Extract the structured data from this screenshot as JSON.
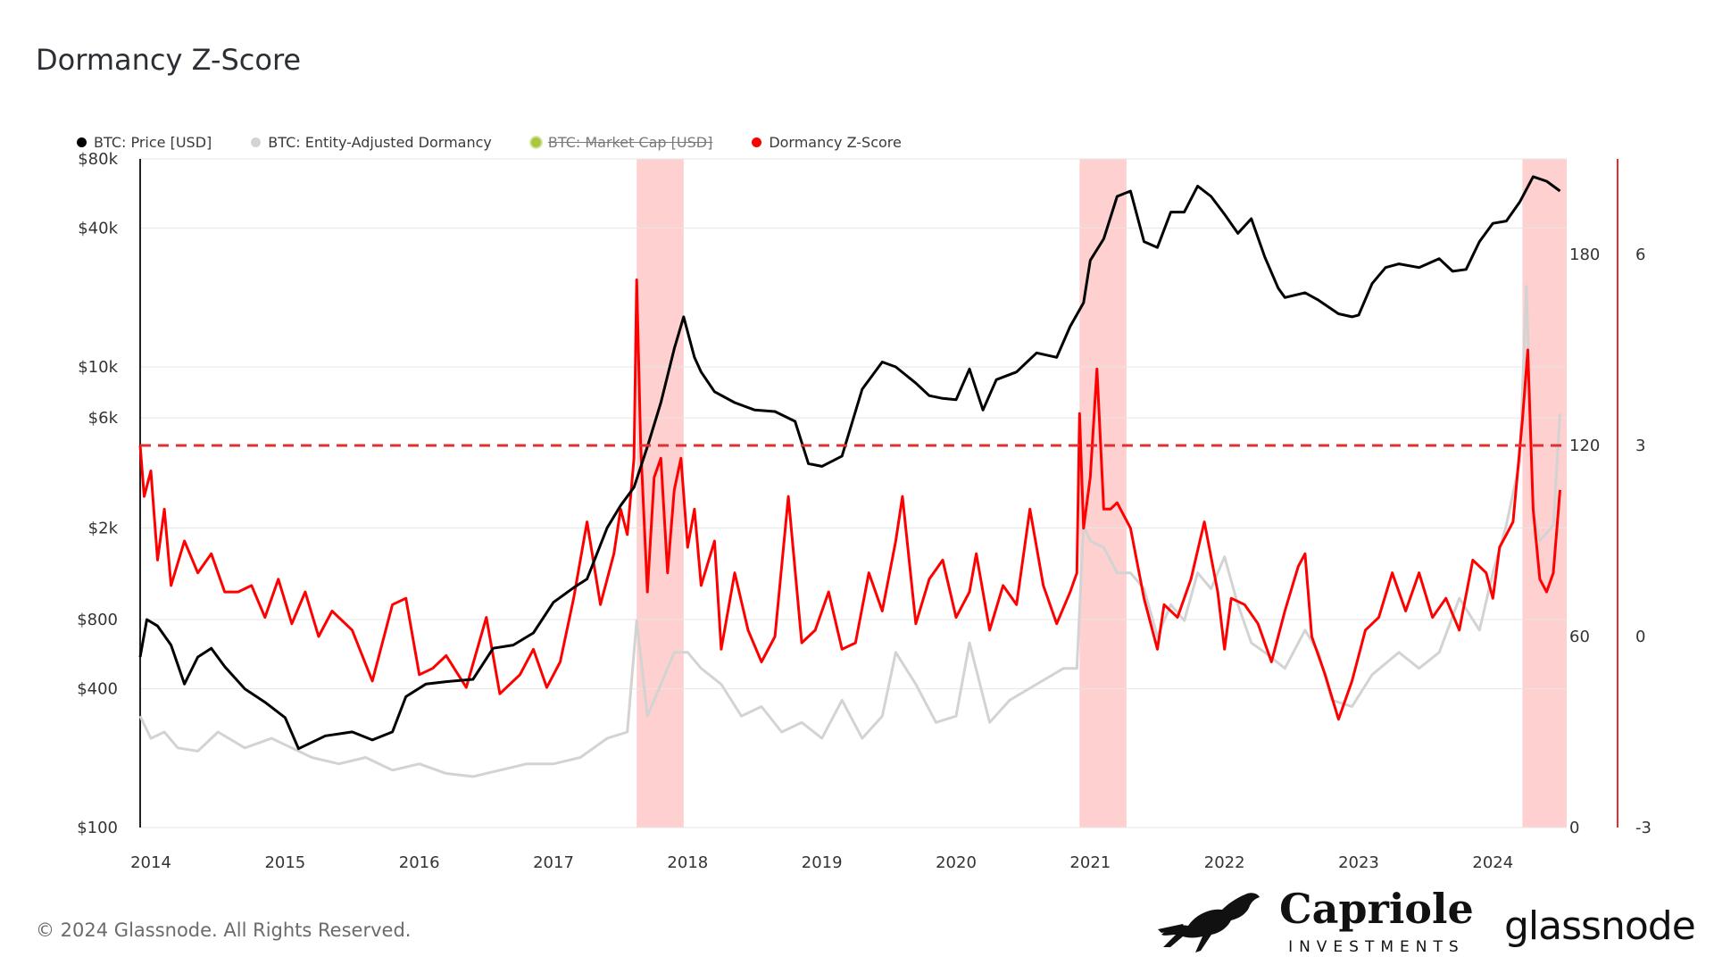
{
  "title": "Dormancy Z-Score",
  "footer": "© 2024 Glassnode. All Rights Reserved.",
  "brands": {
    "capriole_name": "Capriole",
    "capriole_sub": "INVESTMENTS",
    "glassnode": "glassnode"
  },
  "legend": [
    {
      "label": "BTC: Price [USD]",
      "color": "#000000",
      "disabled": false
    },
    {
      "label": "BTC: Entity-Adjusted Dormancy",
      "color": "#d3d3d3",
      "disabled": false
    },
    {
      "label": "BTC: Market Cap [USD]",
      "color": "#a8c640",
      "disabled": true
    },
    {
      "label": "Dormancy Z-Score",
      "color": "#ff0000",
      "disabled": false
    }
  ],
  "chart_data": {
    "type": "line",
    "title": "Dormancy Z-Score",
    "x_range": [
      2013.92,
      2024.55
    ],
    "x_ticks": [
      "2014",
      "2015",
      "2016",
      "2017",
      "2018",
      "2019",
      "2020",
      "2021",
      "2022",
      "2023",
      "2024"
    ],
    "left_axis": {
      "scale": "log",
      "range": [
        100,
        80000
      ],
      "tick_labels": [
        {
          "label": "$80k",
          "value": 80000
        },
        {
          "label": "$40k",
          "value": 40000
        },
        {
          "label": "$10k",
          "value": 10000
        },
        {
          "label": "$6k",
          "value": 6000
        },
        {
          "label": "$2k",
          "value": 2000
        },
        {
          "label": "$800",
          "value": 800
        },
        {
          "label": "$400",
          "value": 400
        },
        {
          "label": "$100",
          "value": 100
        }
      ]
    },
    "dormancy_axis": {
      "range": [
        0,
        210
      ],
      "tick_labels": [
        "180",
        "120",
        "60",
        "0"
      ],
      "tick_values": [
        180,
        120,
        60,
        0
      ]
    },
    "zscore_axis": {
      "range": [
        -3,
        7.5
      ],
      "tick_labels": [
        "6",
        "3",
        "0",
        "-3"
      ],
      "tick_values": [
        6,
        3,
        0,
        -3
      ]
    },
    "threshold": {
      "axis": "zscore",
      "value": 3,
      "color": "#e03030",
      "style": "dashed"
    },
    "highlight_bands": [
      {
        "from": 2017.62,
        "to": 2017.97
      },
      {
        "from": 2020.92,
        "to": 2021.27
      },
      {
        "from": 2024.22,
        "to": 2024.55
      }
    ],
    "series": [
      {
        "name": "BTC: Price [USD]",
        "axis": "left",
        "color": "#000000",
        "x": [
          2013.92,
          2013.97,
          2014.05,
          2014.15,
          2014.25,
          2014.35,
          2014.45,
          2014.55,
          2014.7,
          2014.85,
          2015.0,
          2015.1,
          2015.3,
          2015.5,
          2015.65,
          2015.8,
          2015.9,
          2016.05,
          2016.2,
          2016.4,
          2016.55,
          2016.7,
          2016.85,
          2017.0,
          2017.15,
          2017.25,
          2017.4,
          2017.5,
          2017.6,
          2017.7,
          2017.8,
          2017.9,
          2017.97,
          2018.05,
          2018.1,
          2018.2,
          2018.35,
          2018.5,
          2018.65,
          2018.8,
          2018.9,
          2019.0,
          2019.15,
          2019.3,
          2019.45,
          2019.55,
          2019.7,
          2019.8,
          2019.9,
          2020.0,
          2020.1,
          2020.2,
          2020.3,
          2020.45,
          2020.6,
          2020.75,
          2020.85,
          2020.95,
          2021.0,
          2021.1,
          2021.2,
          2021.3,
          2021.4,
          2021.5,
          2021.6,
          2021.7,
          2021.8,
          2021.9,
          2022.0,
          2022.1,
          2022.2,
          2022.3,
          2022.4,
          2022.45,
          2022.6,
          2022.7,
          2022.85,
          2022.95,
          2023.0,
          2023.1,
          2023.2,
          2023.3,
          2023.45,
          2023.6,
          2023.7,
          2023.8,
          2023.9,
          2024.0,
          2024.1,
          2024.2,
          2024.3,
          2024.4,
          2024.5
        ],
        "values": [
          550,
          800,
          750,
          620,
          420,
          550,
          600,
          500,
          400,
          350,
          300,
          220,
          250,
          260,
          240,
          260,
          370,
          420,
          430,
          440,
          600,
          620,
          700,
          950,
          1100,
          1200,
          2000,
          2500,
          3000,
          4500,
          7000,
          12000,
          16500,
          11000,
          9500,
          7800,
          7000,
          6500,
          6400,
          5800,
          3800,
          3700,
          4100,
          8000,
          10500,
          10000,
          8500,
          7500,
          7300,
          7200,
          9800,
          6500,
          8800,
          9500,
          11500,
          11000,
          15000,
          19000,
          29000,
          36000,
          55000,
          58000,
          35000,
          33000,
          47000,
          47000,
          61000,
          55000,
          46000,
          38000,
          44000,
          30000,
          22000,
          20000,
          21000,
          19500,
          17000,
          16500,
          16800,
          23000,
          27000,
          28000,
          27000,
          29500,
          26000,
          26500,
          35000,
          42000,
          43000,
          52000,
          67000,
          64000,
          58000
        ]
      },
      {
        "name": "BTC: Entity-Adjusted Dormancy",
        "axis": "dormancy",
        "color": "#d3d3d3",
        "x": [
          2013.92,
          2014.0,
          2014.1,
          2014.2,
          2014.35,
          2014.5,
          2014.7,
          2014.9,
          2015.0,
          2015.2,
          2015.4,
          2015.6,
          2015.8,
          2016.0,
          2016.2,
          2016.4,
          2016.6,
          2016.8,
          2017.0,
          2017.2,
          2017.4,
          2017.55,
          2017.62,
          2017.7,
          2017.8,
          2017.9,
          2018.0,
          2018.1,
          2018.25,
          2018.4,
          2018.55,
          2018.7,
          2018.85,
          2019.0,
          2019.15,
          2019.3,
          2019.45,
          2019.55,
          2019.7,
          2019.85,
          2020.0,
          2020.1,
          2020.25,
          2020.4,
          2020.6,
          2020.8,
          2020.9,
          2020.95,
          2021.0,
          2021.1,
          2021.2,
          2021.3,
          2021.4,
          2021.5,
          2021.6,
          2021.7,
          2021.8,
          2021.9,
          2022.0,
          2022.1,
          2022.2,
          2022.3,
          2022.45,
          2022.6,
          2022.7,
          2022.8,
          2022.95,
          2023.1,
          2023.3,
          2023.45,
          2023.6,
          2023.75,
          2023.9,
          2024.0,
          2024.1,
          2024.2,
          2024.25,
          2024.3,
          2024.35,
          2024.45,
          2024.5
        ],
        "values": [
          35,
          28,
          30,
          25,
          24,
          30,
          25,
          28,
          26,
          22,
          20,
          22,
          18,
          20,
          17,
          16,
          18,
          20,
          20,
          22,
          28,
          30,
          65,
          35,
          45,
          55,
          55,
          50,
          45,
          35,
          38,
          30,
          33,
          28,
          40,
          28,
          35,
          55,
          45,
          33,
          35,
          58,
          33,
          40,
          45,
          50,
          50,
          95,
          90,
          88,
          80,
          80,
          75,
          60,
          70,
          65,
          80,
          75,
          85,
          70,
          58,
          55,
          50,
          62,
          55,
          40,
          38,
          48,
          55,
          50,
          55,
          72,
          62,
          80,
          95,
          115,
          170,
          100,
          90,
          95,
          130
        ]
      },
      {
        "name": "Dormancy Z-Score",
        "axis": "zscore",
        "color": "#ff0000",
        "x": [
          2013.92,
          2013.95,
          2014.0,
          2014.05,
          2014.1,
          2014.15,
          2014.25,
          2014.35,
          2014.45,
          2014.55,
          2014.65,
          2014.75,
          2014.85,
          2014.95,
          2015.05,
          2015.15,
          2015.25,
          2015.35,
          2015.5,
          2015.65,
          2015.8,
          2015.9,
          2016.0,
          2016.1,
          2016.2,
          2016.35,
          2016.5,
          2016.6,
          2016.75,
          2016.85,
          2016.95,
          2017.05,
          2017.15,
          2017.25,
          2017.35,
          2017.45,
          2017.5,
          2017.55,
          2017.6,
          2017.62,
          2017.65,
          2017.7,
          2017.75,
          2017.8,
          2017.85,
          2017.9,
          2017.95,
          2018.0,
          2018.05,
          2018.1,
          2018.2,
          2018.25,
          2018.35,
          2018.45,
          2018.55,
          2018.65,
          2018.75,
          2018.85,
          2018.95,
          2019.05,
          2019.15,
          2019.25,
          2019.35,
          2019.45,
          2019.55,
          2019.6,
          2019.7,
          2019.8,
          2019.9,
          2020.0,
          2020.1,
          2020.15,
          2020.25,
          2020.35,
          2020.45,
          2020.55,
          2020.65,
          2020.75,
          2020.85,
          2020.9,
          2020.92,
          2020.95,
          2021.0,
          2021.05,
          2021.1,
          2021.15,
          2021.2,
          2021.3,
          2021.4,
          2021.5,
          2021.55,
          2021.65,
          2021.75,
          2021.85,
          2021.95,
          2022.0,
          2022.05,
          2022.15,
          2022.25,
          2022.35,
          2022.45,
          2022.55,
          2022.6,
          2022.65,
          2022.75,
          2022.85,
          2022.95,
          2023.05,
          2023.15,
          2023.25,
          2023.35,
          2023.45,
          2023.55,
          2023.65,
          2023.75,
          2023.85,
          2023.95,
          2024.0,
          2024.05,
          2024.1,
          2024.15,
          2024.22,
          2024.26,
          2024.3,
          2024.35,
          2024.4,
          2024.45,
          2024.5
        ],
        "values": [
          3.0,
          2.2,
          2.6,
          1.2,
          2.0,
          0.8,
          1.5,
          1.0,
          1.3,
          0.7,
          0.7,
          0.8,
          0.3,
          0.9,
          0.2,
          0.7,
          0.0,
          0.4,
          0.1,
          -0.7,
          0.5,
          0.6,
          -0.6,
          -0.5,
          -0.3,
          -0.8,
          0.3,
          -0.9,
          -0.6,
          -0.2,
          -0.8,
          -0.4,
          0.6,
          1.8,
          0.5,
          1.3,
          2.0,
          1.6,
          2.8,
          5.6,
          3.0,
          0.7,
          2.5,
          2.8,
          1.0,
          2.3,
          2.8,
          1.4,
          2.0,
          0.8,
          1.5,
          -0.2,
          1.0,
          0.1,
          -0.4,
          0.0,
          2.2,
          -0.1,
          0.1,
          0.7,
          -0.2,
          -0.1,
          1.0,
          0.4,
          1.5,
          2.2,
          0.2,
          0.9,
          1.2,
          0.3,
          0.7,
          1.3,
          0.1,
          0.8,
          0.5,
          2.0,
          0.8,
          0.2,
          0.7,
          1.0,
          3.5,
          1.7,
          2.5,
          4.2,
          2.0,
          2.0,
          2.1,
          1.7,
          0.6,
          -0.2,
          0.5,
          0.3,
          0.9,
          1.8,
          0.7,
          -0.2,
          0.6,
          0.5,
          0.2,
          -0.4,
          0.4,
          1.1,
          1.3,
          0.0,
          -0.6,
          -1.3,
          -0.7,
          0.1,
          0.3,
          1.0,
          0.4,
          1.0,
          0.3,
          0.6,
          0.1,
          1.2,
          1.0,
          0.6,
          1.4,
          1.6,
          1.8,
          3.4,
          4.5,
          2.0,
          0.9,
          0.7,
          1.0,
          2.3
        ]
      }
    ]
  }
}
